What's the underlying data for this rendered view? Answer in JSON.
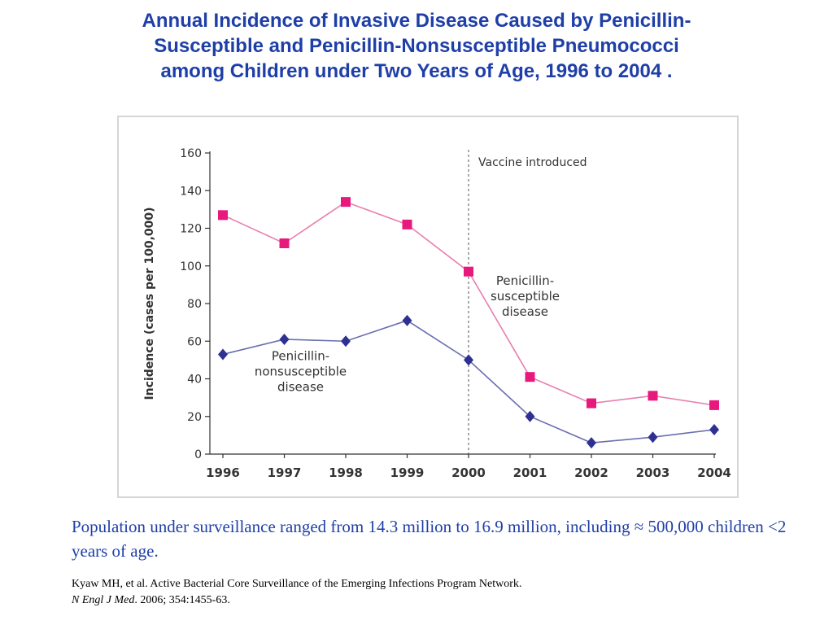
{
  "slide": {
    "title_lines": [
      "Annual Incidence of Invasive Disease Caused by Penicillin-",
      "Susceptible and Penicillin-Nonsusceptible Pneumococci",
      "among Children under Two Years of Age, 1996 to 2004 ."
    ],
    "caption": "Population under surveillance ranged from 14.3 million to 16.9 million, including ≈ 500,000 children <2 years of age.",
    "citation_line1": "Kyaw MH, et al. Active Bacterial Core Surveillance of the Emerging Infections Program Network.",
    "citation_journal": "N Engl J Med",
    "citation_rest": ". 2006; 354:1455-63."
  },
  "chart_data": {
    "type": "line",
    "x": [
      "1996",
      "1997",
      "1998",
      "1999",
      "2000",
      "2001",
      "2002",
      "2003",
      "2004"
    ],
    "ylabel": "Incidence (cases per 100,000)",
    "ylim": [
      0,
      160
    ],
    "yticks": [
      0,
      20,
      40,
      60,
      80,
      100,
      120,
      140,
      160
    ],
    "grid": false,
    "series": [
      {
        "name_lines": [
          "Penicillin-",
          "susceptible",
          "disease"
        ],
        "color": "#e8197d",
        "marker": "square",
        "values": [
          127,
          112,
          134,
          122,
          97,
          41,
          27,
          31,
          26
        ]
      },
      {
        "name_lines": [
          "Penicillin-",
          "nonsusceptible",
          "disease"
        ],
        "color": "#2e3192",
        "marker": "diamond",
        "values": [
          53,
          61,
          60,
          71,
          50,
          20,
          6,
          9,
          13
        ]
      }
    ],
    "annotations": [
      {
        "text": "Vaccine introduced",
        "x": "2000",
        "style": "dashed-vertical-line"
      }
    ]
  }
}
